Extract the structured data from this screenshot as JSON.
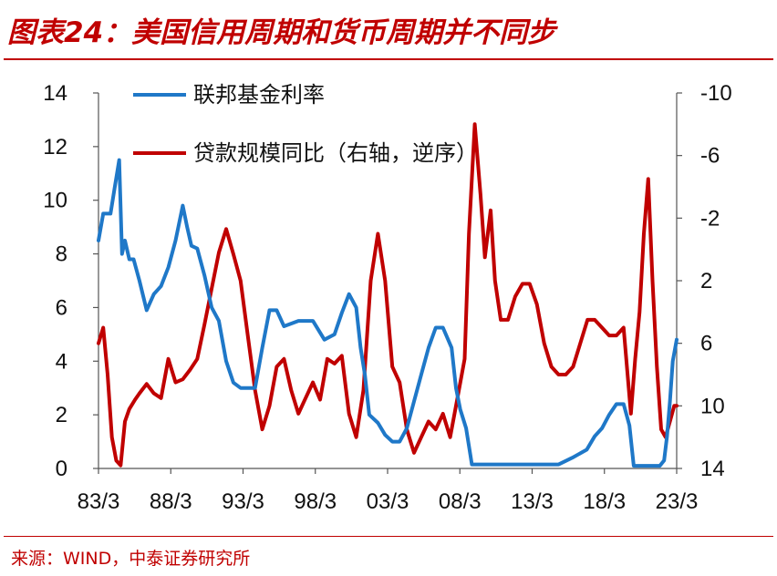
{
  "header": {
    "title": "图表24：美国信用周期和货币周期并不同步"
  },
  "footer": {
    "source": "来源：WIND，中泰证券研究所"
  },
  "colors": {
    "accent": "#c00000",
    "series_blue": "#1f78c8",
    "series_red": "#c00000"
  },
  "chart_data": {
    "type": "line",
    "x_tick_labels": [
      "83/3",
      "88/3",
      "93/3",
      "98/3",
      "03/3",
      "08/3",
      "13/3",
      "18/3",
      "23/3"
    ],
    "xlim": [
      1983.17,
      2023.17
    ],
    "y_left": {
      "lim": [
        0,
        14
      ],
      "ticks": [
        0,
        2,
        4,
        6,
        8,
        10,
        12,
        14
      ]
    },
    "y_right": {
      "lim": [
        14,
        -10
      ],
      "ticks": [
        -10,
        -6,
        -2,
        2,
        6,
        10,
        14
      ],
      "tick_labels": [
        "-10",
        "-6",
        "-2",
        "2",
        "6",
        "10",
        "14"
      ],
      "scale": "inverted"
    },
    "legend_position": "top-left",
    "grid": false,
    "series": [
      {
        "name": "联邦基金利率",
        "axis": "left",
        "color": "#1f78c8",
        "x": [
          1983.17,
          1983.5,
          1984.0,
          1984.3,
          1984.6,
          1984.8,
          1985.0,
          1985.3,
          1985.6,
          1986.0,
          1986.5,
          1987.0,
          1987.5,
          1988.0,
          1988.5,
          1989.0,
          1989.3,
          1989.6,
          1990.0,
          1990.5,
          1991.0,
          1991.5,
          1992.0,
          1992.5,
          1993.0,
          1994.0,
          1994.5,
          1995.0,
          1995.5,
          1996.0,
          1997.0,
          1998.0,
          1998.8,
          1999.5,
          2000.0,
          2000.5,
          2001.0,
          2001.3,
          2001.6,
          2001.9,
          2002.5,
          2003.0,
          2003.5,
          2004.0,
          2004.5,
          2005.0,
          2005.5,
          2006.0,
          2006.5,
          2007.0,
          2007.6,
          2007.9,
          2008.2,
          2008.6,
          2008.9,
          2009.0,
          2015.0,
          2015.95,
          2016.95,
          2017.5,
          2018.0,
          2018.5,
          2019.0,
          2019.5,
          2019.9,
          2020.2,
          2022.0,
          2022.3,
          2022.5,
          2022.7,
          2022.9,
          2023.17
        ],
        "y": [
          8.5,
          9.5,
          9.5,
          10.5,
          11.5,
          8.0,
          8.5,
          7.8,
          7.8,
          7.0,
          5.9,
          6.5,
          6.8,
          7.5,
          8.5,
          9.8,
          9.0,
          8.3,
          8.2,
          7.2,
          6.0,
          5.5,
          4.0,
          3.2,
          3.0,
          3.0,
          4.5,
          5.9,
          5.9,
          5.3,
          5.5,
          5.5,
          4.8,
          5.0,
          5.8,
          6.5,
          6.0,
          4.5,
          3.5,
          2.0,
          1.7,
          1.25,
          1.0,
          1.0,
          1.5,
          2.5,
          3.5,
          4.5,
          5.25,
          5.25,
          4.5,
          3.0,
          2.2,
          1.5,
          0.5,
          0.15,
          0.15,
          0.4,
          0.7,
          1.2,
          1.5,
          2.0,
          2.4,
          2.4,
          1.6,
          0.1,
          0.1,
          0.3,
          1.2,
          2.5,
          4.0,
          4.8
        ]
      },
      {
        "name": "贷款规模同比（右轴，逆序）",
        "axis": "right",
        "color": "#c00000",
        "x": [
          1983.17,
          1983.5,
          1983.8,
          1984.1,
          1984.4,
          1984.7,
          1985.0,
          1985.3,
          1985.7,
          1986.0,
          1986.5,
          1987.0,
          1987.5,
          1988.0,
          1988.5,
          1989.0,
          1989.5,
          1990.0,
          1990.5,
          1991.0,
          1991.5,
          1992.0,
          1992.5,
          1993.0,
          1993.5,
          1994.0,
          1994.5,
          1995.0,
          1995.5,
          1996.0,
          1996.5,
          1997.0,
          1997.5,
          1998.0,
          1998.5,
          1999.0,
          1999.5,
          2000.0,
          2000.5,
          2001.0,
          2001.5,
          2002.0,
          2002.5,
          2003.0,
          2003.5,
          2004.0,
          2004.5,
          2005.0,
          2005.5,
          2006.0,
          2006.5,
          2007.0,
          2007.5,
          2008.0,
          2008.5,
          2008.8,
          2009.2,
          2009.6,
          2009.9,
          2010.3,
          2010.6,
          2011.0,
          2011.5,
          2012.0,
          2012.5,
          2013.0,
          2013.5,
          2014.0,
          2014.5,
          2015.0,
          2015.5,
          2016.0,
          2016.5,
          2017.0,
          2017.5,
          2018.0,
          2018.5,
          2019.0,
          2019.5,
          2020.0,
          2020.3,
          2020.6,
          2020.9,
          2021.2,
          2021.5,
          2021.8,
          2022.1,
          2022.4,
          2022.7,
          2023.0,
          2023.17
        ],
        "y": [
          6.0,
          5.0,
          8.0,
          12.0,
          13.5,
          13.8,
          11.0,
          10.2,
          9.6,
          9.2,
          8.6,
          9.2,
          9.5,
          7.0,
          8.5,
          8.3,
          7.7,
          7.0,
          4.8,
          2.5,
          0.2,
          -1.3,
          0.3,
          2.0,
          5.5,
          9.0,
          11.5,
          10.0,
          7.5,
          7.0,
          9.0,
          10.5,
          9.5,
          8.5,
          9.6,
          7.0,
          7.3,
          6.8,
          10.5,
          12.0,
          9.0,
          2.0,
          -1.0,
          2.0,
          7.5,
          8.5,
          11.5,
          13.0,
          12.0,
          11.0,
          11.5,
          10.5,
          12.0,
          9.5,
          7.0,
          -1.0,
          -8.0,
          -3.5,
          0.5,
          -2.5,
          2.0,
          4.5,
          4.5,
          3.0,
          2.2,
          2.2,
          3.5,
          6.0,
          7.5,
          8.0,
          8.0,
          7.5,
          6.0,
          4.5,
          4.5,
          5.0,
          5.5,
          5.5,
          5.0,
          10.5,
          7.0,
          4.0,
          -1.0,
          -4.5,
          2.0,
          7.5,
          11.5,
          12.0,
          11.0,
          10.0,
          10.0
        ]
      }
    ]
  }
}
